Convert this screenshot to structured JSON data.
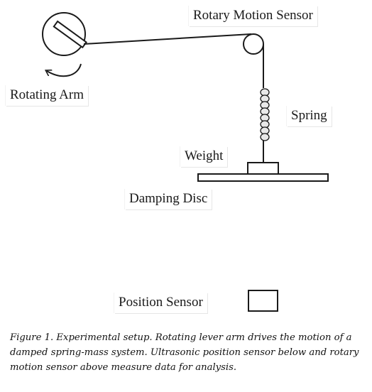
{
  "labels": {
    "rotary_motion_sensor": "Rotary Motion Sensor",
    "rotating_arm": "Rotating Arm",
    "spring": "Spring",
    "weight": "Weight",
    "damping_disc": "Damping Disc",
    "position_sensor": "Position Sensor"
  },
  "caption": "Figure 1. Experimental setup. Rotating lever arm drives the motion of a damped spring-mass system. Ultrasonic position sensor below and rotary motion sensor above measure data for analysis.",
  "colors": {
    "line": "#1a1a1a",
    "spring_fill": "#e8e8e8"
  },
  "icons": {
    "rotation_arrow": "curved-arrow-counterclockwise"
  }
}
